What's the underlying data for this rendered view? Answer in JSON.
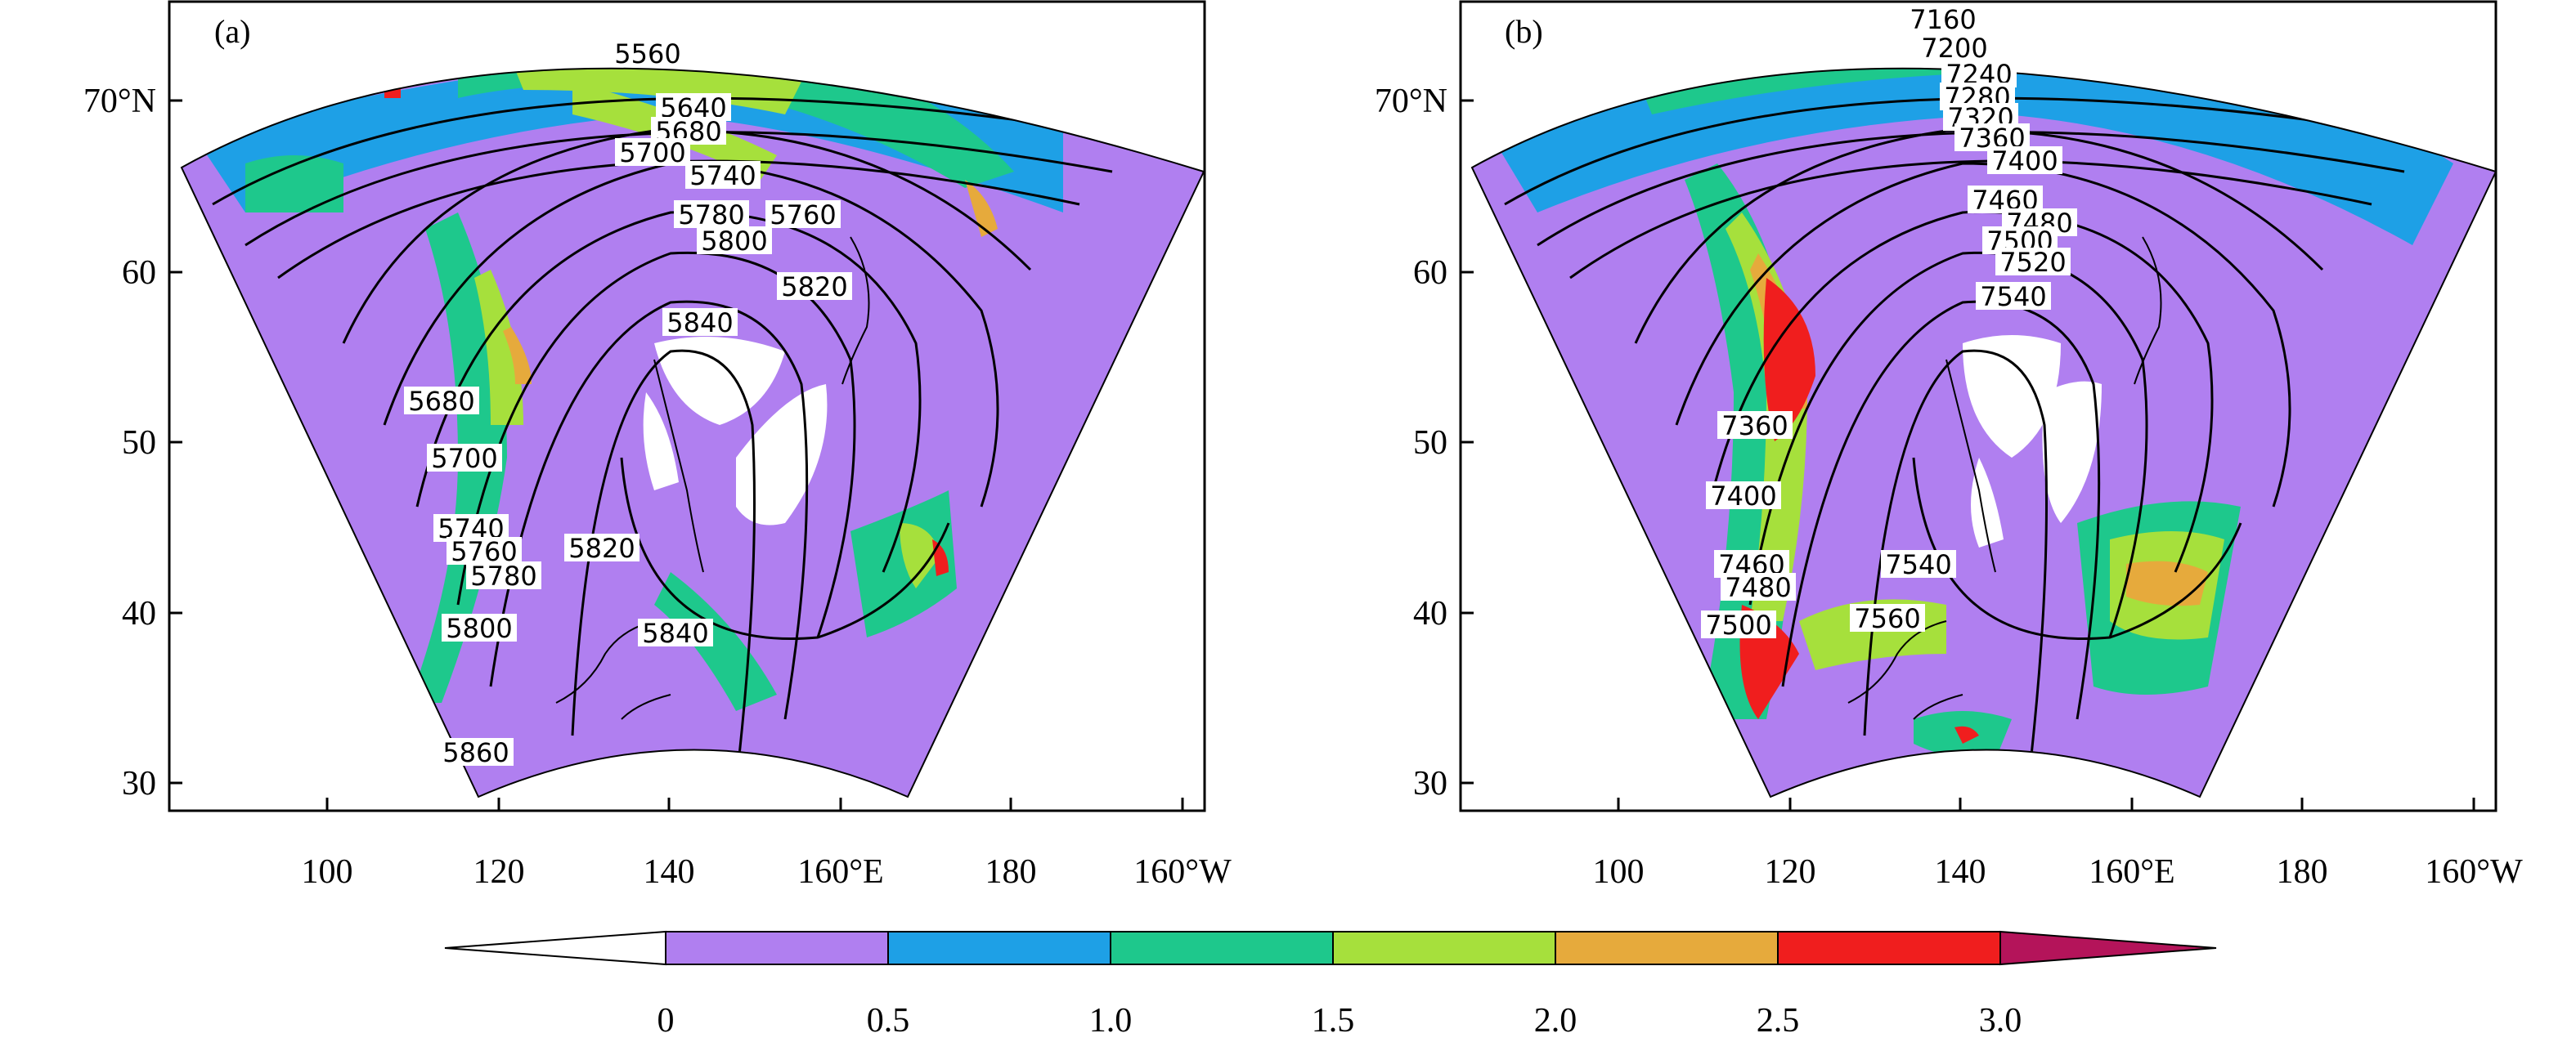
{
  "figure": {
    "panels": [
      {
        "id": "a",
        "label": "(a)",
        "contour_labels": [
          "5560",
          "5640",
          "5680",
          "5700",
          "5740",
          "5780",
          "5760",
          "5800",
          "5820",
          "5840",
          "5680",
          "5700",
          "5740",
          "5760",
          "5780",
          "5820",
          "5800",
          "5840",
          "5860"
        ]
      },
      {
        "id": "b",
        "label": "(b)",
        "contour_labels": [
          "7160",
          "7200",
          "7240",
          "7280",
          "7320",
          "7360",
          "7400",
          "7460",
          "7480",
          "7500",
          "7520",
          "7540",
          "7360",
          "7400",
          "7460",
          "7480",
          "7500",
          "7540",
          "7560"
        ]
      }
    ],
    "y_ticks": [
      "70°N",
      "60",
      "50",
      "40",
      "30"
    ],
    "x_ticks": [
      "100",
      "120",
      "140",
      "160°E",
      "180",
      "160°W"
    ],
    "colorbar": {
      "labels": [
        "0",
        "0.5",
        "1.0",
        "1.5",
        "2.0",
        "2.5",
        "3.0"
      ],
      "colors": [
        "#ffffff",
        "#b07ff0",
        "#1ea0e6",
        "#1ec88c",
        "#a6e03c",
        "#e6aa3c",
        "#f01e1e",
        "#b4145a"
      ]
    }
  }
}
